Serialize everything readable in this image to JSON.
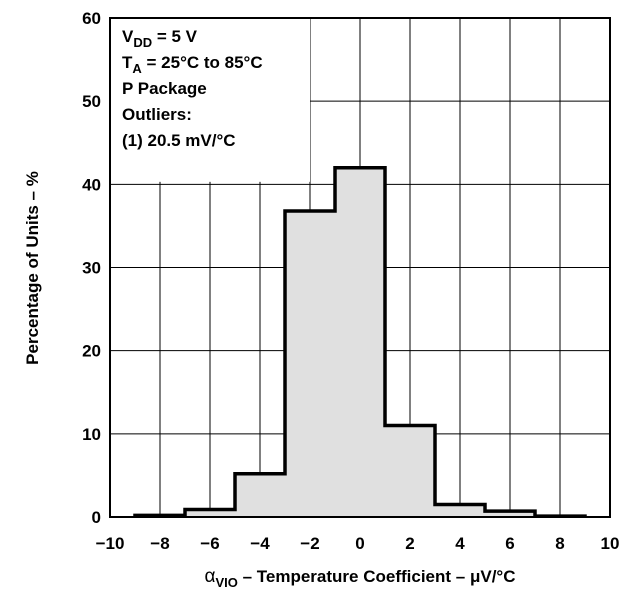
{
  "chart_data": {
    "type": "bar",
    "bin_edges": [
      -9,
      -7,
      -5,
      -3,
      -1,
      1,
      3,
      5,
      7,
      9
    ],
    "values": [
      0.2,
      0.9,
      5.2,
      36.8,
      42.0,
      11.0,
      1.5,
      0.7,
      0.1
    ],
    "xlim": [
      -10,
      10
    ],
    "ylim": [
      0,
      60
    ],
    "x_ticks": [
      "−10",
      "−8",
      "−6",
      "−4",
      "−2",
      "0",
      "2",
      "4",
      "6",
      "8",
      "10"
    ],
    "y_ticks": [
      "0",
      "10",
      "20",
      "30",
      "40",
      "50",
      "60"
    ],
    "grid": true,
    "fill_color": "#e0e0e0",
    "xlabel": {
      "symbol": "α",
      "subscript": "VIO",
      "text": " – Temperature Coefficient – μV/°C"
    },
    "ylabel": "Percentage of Units – %",
    "annotations": {
      "vdd_main": "V",
      "vdd_sub": "DD",
      "vdd_rest": " = 5 V",
      "ta_main": "T",
      "ta_sub": "A",
      "ta_rest": " = 25°C to 85°C",
      "package": "P Package",
      "outliers": "Outliers:",
      "outlier_value": "(1) 20.5 mV/°C"
    }
  }
}
